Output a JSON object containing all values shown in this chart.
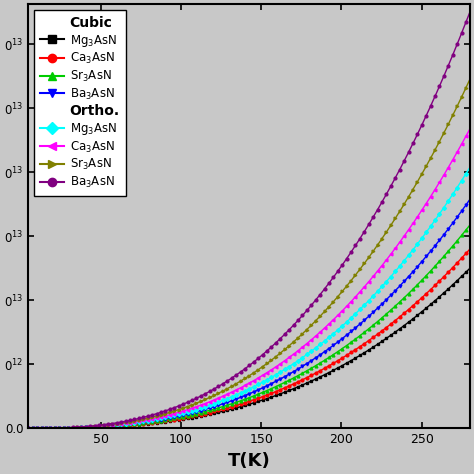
{
  "xlabel": "T(K)",
  "T_min": 5,
  "T_max": 280,
  "series": [
    {
      "label_short": "Mg$_3$AsN",
      "color": "black",
      "marker": "s",
      "scale": 1.0,
      "group": "Cubic"
    },
    {
      "label_short": "Ca$_3$AsN",
      "color": "red",
      "marker": "o",
      "scale": 1.12,
      "group": "Cubic"
    },
    {
      "label_short": "Sr$_3$AsN",
      "color": "#00cc00",
      "marker": "^",
      "scale": 1.27,
      "group": "Cubic"
    },
    {
      "label_short": "Ba$_3$AsN",
      "color": "blue",
      "marker": "v",
      "scale": 1.43,
      "group": "Cubic"
    },
    {
      "label_short": "Mg$_3$AsN",
      "color": "cyan",
      "marker": "D",
      "scale": 1.63,
      "group": "Ortho."
    },
    {
      "label_short": "Ca$_3$AsN",
      "color": "magenta",
      "marker": "<",
      "scale": 1.87,
      "group": "Ortho."
    },
    {
      "label_short": "Sr$_3$AsN",
      "color": "#808000",
      "marker": ">",
      "scale": 2.18,
      "group": "Ortho."
    },
    {
      "label_short": "Ba$_3$AsN",
      "color": "purple",
      "marker": "o",
      "scale": 2.6,
      "group": "Ortho."
    }
  ],
  "cubic_labels": [
    "Mg$_3$AsN",
    "Ca$_3$AsN",
    "Sr$_3$AsN",
    "Ba$_3$AsN"
  ],
  "cubic_colors": [
    "black",
    "red",
    "#00cc00",
    "blue"
  ],
  "cubic_markers": [
    "s",
    "o",
    "^",
    "v"
  ],
  "ortho_labels": [
    "Mg$_3$AsN",
    "Ca$_3$AsN",
    "Sr$_3$AsN",
    "Ba$_3$AsN"
  ],
  "ortho_colors": [
    "cyan",
    "magenta",
    "#808000",
    "purple"
  ],
  "ortho_markers": [
    "D",
    "<",
    ">",
    "o"
  ],
  "bg_color": "#c8c8c8",
  "ytick_positions": [
    0.0,
    0.4,
    0.8,
    1.2,
    1.6,
    2.0,
    2.4
  ],
  "ytick_labels": [
    "0.0",
    "0$^{12}$",
    "0$^{13}$",
    "0$^{13}$",
    "0$^{13}$",
    "0$^{13}$",
    "0$^{13}$"
  ],
  "xticks": [
    50,
    100,
    150,
    200,
    250
  ],
  "xlim": [
    5,
    280
  ],
  "ylim": [
    0.0,
    2.65
  ]
}
